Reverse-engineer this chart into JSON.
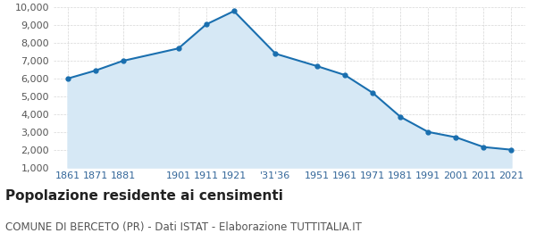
{
  "years": [
    1861,
    1871,
    1881,
    1901,
    1911,
    1921,
    1936,
    1951,
    1961,
    1971,
    1981,
    1991,
    2001,
    2011,
    2021
  ],
  "population": [
    6000,
    6450,
    7000,
    7700,
    9050,
    9800,
    7400,
    6700,
    6200,
    5200,
    3850,
    3000,
    2700,
    2150,
    2000
  ],
  "tick_labels": [
    "1861",
    "1871",
    "1881",
    "1901",
    "1911",
    "1921",
    "'31'36",
    "1951",
    "1961",
    "1971",
    "1981",
    "1991",
    "2001",
    "2011",
    "2021"
  ],
  "line_color": "#1a6faf",
  "fill_color": "#d6e8f5",
  "marker_color": "#1a6faf",
  "grid_color": "#cccccc",
  "background_color": "#ffffff",
  "title": "Popolazione residente ai censimenti",
  "subtitle": "COMUNE DI BERCETO (PR) - Dati ISTAT - Elaborazione TUTTITALIA.IT",
  "ylim": [
    1000,
    10000
  ],
  "yticks": [
    1000,
    2000,
    3000,
    4000,
    5000,
    6000,
    7000,
    8000,
    9000,
    10000
  ],
  "title_fontsize": 11,
  "subtitle_fontsize": 8.5,
  "tick_fontsize": 8,
  "axis_label_color": "#336699"
}
